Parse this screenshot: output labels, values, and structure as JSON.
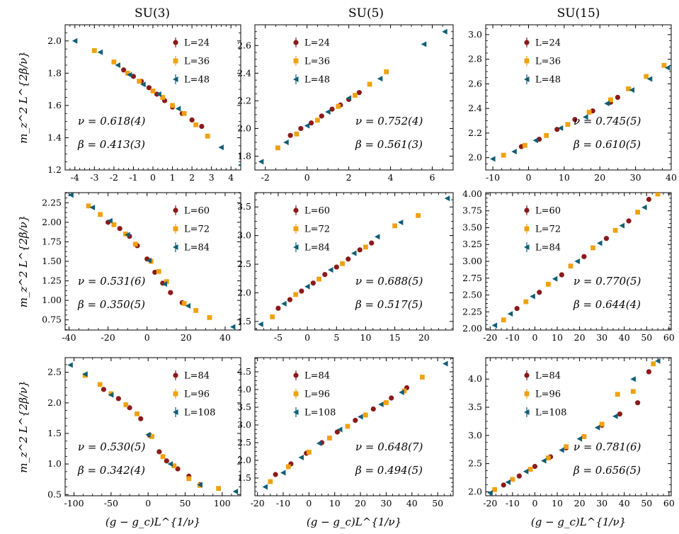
{
  "figure": {
    "column_titles": [
      "SU(3)",
      "SU(5)",
      "SU(15)"
    ],
    "xlabel": "(g − g_c)L^{1/ν}",
    "ylabel": "m_z^2 L^{2β/ν}",
    "colors": {
      "red": "#8b1a1a",
      "orange": "#f0a10f",
      "teal": "#0f5e75"
    }
  },
  "chart_data": [
    {
      "type": "scatter",
      "group": "SU(3)",
      "xlim": [
        -4.5,
        4.5
      ],
      "ylim": [
        1.2,
        2.1
      ],
      "xticks": [
        -4,
        -3,
        -2,
        -1,
        0,
        1,
        2,
        3,
        4
      ],
      "yticks": [
        1.2,
        1.4,
        1.6,
        1.8,
        2.0
      ],
      "ytick_labels": [
        "1.2",
        "1.4",
        "1.6",
        "1.8",
        "2.0"
      ],
      "annotations": [
        "ν = 0.618(4)",
        "β = 0.413(3)"
      ],
      "legend_position": "top-right",
      "series": [
        {
          "name": "L=24",
          "marker": "circle",
          "color": "#8b1a1a",
          "x": [
            -1.5,
            -1.0,
            -0.6,
            -0.2,
            0.2,
            0.6,
            1.0,
            1.5,
            2.0,
            2.5
          ],
          "y": [
            1.82,
            1.78,
            1.75,
            1.71,
            1.67,
            1.63,
            1.59,
            1.55,
            1.51,
            1.47
          ]
        },
        {
          "name": "L=36",
          "marker": "square",
          "color": "#f0a10f",
          "x": [
            -3.0,
            -2.0,
            -1.3,
            -0.7,
            0.0,
            0.5,
            1.0,
            1.6,
            2.2,
            2.8
          ],
          "y": [
            1.94,
            1.87,
            1.8,
            1.75,
            1.69,
            1.65,
            1.6,
            1.55,
            1.48,
            1.41
          ]
        },
        {
          "name": "L=48",
          "marker": "triangle",
          "color": "#0f5e75",
          "x": [
            -4.0,
            -2.7,
            -1.8,
            -1.2,
            -0.5,
            0.3,
            1.3,
            3.5,
            4.5
          ],
          "y": [
            2.0,
            1.93,
            1.85,
            1.79,
            1.73,
            1.67,
            1.58,
            1.34,
            1.23
          ]
        }
      ]
    },
    {
      "type": "scatter",
      "group": "SU(5)",
      "xlim": [
        -2.5,
        7.0
      ],
      "ylim": [
        1.7,
        2.75
      ],
      "xticks": [
        -2,
        0,
        2,
        4,
        6
      ],
      "yticks": [
        1.8,
        2.0,
        2.2,
        2.4,
        2.6
      ],
      "ytick_labels": [
        "1.8",
        "2.0",
        "2.2",
        "2.4",
        "2.6"
      ],
      "annotations": [
        "ν = 0.752(4)",
        "β = 0.561(3)"
      ],
      "legend_position": "top-left",
      "series": [
        {
          "name": "L=24",
          "marker": "circle",
          "color": "#8b1a1a",
          "x": [
            -0.8,
            -0.3,
            0.2,
            0.7,
            1.2,
            1.6,
            2.0,
            2.5
          ],
          "y": [
            1.95,
            2.0,
            2.04,
            2.09,
            2.14,
            2.17,
            2.21,
            2.26
          ]
        },
        {
          "name": "L=36",
          "marker": "square",
          "color": "#f0a10f",
          "x": [
            -1.4,
            -0.5,
            0.5,
            1.5,
            2.3,
            3.0,
            3.8
          ],
          "y": [
            1.86,
            1.96,
            2.06,
            2.16,
            2.24,
            2.32,
            2.41
          ]
        },
        {
          "name": "L=48",
          "marker": "triangle",
          "color": "#0f5e75",
          "x": [
            -2.2,
            -1.0,
            0.0,
            1.0,
            2.0,
            3.5,
            5.6,
            6.6
          ],
          "y": [
            1.76,
            1.9,
            2.02,
            2.12,
            2.22,
            2.36,
            2.61,
            2.7
          ]
        }
      ]
    },
    {
      "type": "scatter",
      "group": "SU(15)",
      "xlim": [
        -12,
        40
      ],
      "ylim": [
        1.9,
        3.08
      ],
      "xticks": [
        -10,
        0,
        10,
        20,
        30,
        40
      ],
      "yticks": [
        2.0,
        2.2,
        2.4,
        2.6,
        2.8,
        3.0
      ],
      "ytick_labels": [
        "2.0",
        "2.2",
        "2.4",
        "2.6",
        "2.8",
        "3.0"
      ],
      "annotations": [
        "ν = 0.745(5)",
        "β = 0.610(5)"
      ],
      "legend_position": "top-left",
      "series": [
        {
          "name": "L=24",
          "marker": "circle",
          "color": "#8b1a1a",
          "x": [
            -2,
            3,
            8,
            13,
            18,
            23,
            25
          ],
          "y": [
            2.09,
            2.15,
            2.23,
            2.31,
            2.38,
            2.45,
            2.49
          ]
        },
        {
          "name": "L=36",
          "marker": "square",
          "color": "#f0a10f",
          "x": [
            -7,
            -1,
            5,
            11,
            17,
            23,
            28,
            33,
            38
          ],
          "y": [
            2.02,
            2.1,
            2.18,
            2.27,
            2.37,
            2.47,
            2.56,
            2.66,
            2.75
          ]
        },
        {
          "name": "L=48",
          "marker": "triangle",
          "color": "#0f5e75",
          "x": [
            -10,
            -4,
            2,
            9,
            16,
            22,
            29,
            34,
            39
          ],
          "y": [
            1.99,
            2.05,
            2.14,
            2.24,
            2.33,
            2.44,
            2.55,
            2.64,
            2.73
          ]
        }
      ]
    },
    {
      "type": "scatter",
      "group": "SU(3)",
      "xlim": [
        -42,
        48
      ],
      "ylim": [
        0.62,
        2.38
      ],
      "xticks": [
        -40,
        -20,
        0,
        20,
        40
      ],
      "yticks": [
        0.75,
        1.0,
        1.25,
        1.5,
        1.75,
        2.0,
        2.25
      ],
      "ytick_labels": [
        "0.75",
        "1.00",
        "1.25",
        "1.50",
        "1.75",
        "2.00",
        "2.25"
      ],
      "annotations": [
        "ν = 0.531(6)",
        "β = 0.350(5)"
      ],
      "legend_position": "top-right",
      "series": [
        {
          "name": "L=60",
          "marker": "circle",
          "color": "#8b1a1a",
          "x": [
            -20,
            -14,
            -9,
            -5,
            0,
            4,
            8,
            12,
            18
          ],
          "y": [
            2.0,
            1.92,
            1.82,
            1.7,
            1.53,
            1.36,
            1.22,
            1.1,
            0.97
          ]
        },
        {
          "name": "L=72",
          "marker": "square",
          "color": "#f0a10f",
          "x": [
            -30,
            -24,
            -17,
            -11,
            -6,
            2,
            6,
            10,
            19,
            25,
            32
          ],
          "y": [
            2.21,
            2.1,
            1.97,
            1.85,
            1.72,
            1.5,
            1.37,
            1.24,
            0.96,
            0.87,
            0.78
          ]
        },
        {
          "name": "L=84",
          "marker": "triangle",
          "color": "#0f5e75",
          "x": [
            -39,
            -28,
            -19,
            -10,
            1,
            9,
            21,
            44
          ],
          "y": [
            2.35,
            2.19,
            2.02,
            1.84,
            1.51,
            1.21,
            0.93,
            0.66
          ]
        }
      ]
    },
    {
      "type": "scatter",
      "group": "SU(5)",
      "xlim": [
        -9,
        25
      ],
      "ylim": [
        1.35,
        3.75
      ],
      "xticks": [
        -5,
        0,
        5,
        10,
        15,
        20
      ],
      "yticks": [
        1.5,
        2.0,
        2.5,
        3.0,
        3.5
      ],
      "ytick_labels": [
        "1.5",
        "2.0",
        "2.5",
        "3.0",
        "3.5"
      ],
      "annotations": [
        "ν = 0.688(5)",
        "β = 0.517(5)"
      ],
      "legend_position": "top-left",
      "series": [
        {
          "name": "L=60",
          "marker": "circle",
          "color": "#8b1a1a",
          "x": [
            -5,
            -3,
            -1,
            1,
            3,
            5,
            7,
            9,
            11
          ],
          "y": [
            1.73,
            1.88,
            2.03,
            2.17,
            2.32,
            2.45,
            2.59,
            2.75,
            2.87
          ]
        },
        {
          "name": "L=72",
          "marker": "square",
          "color": "#f0a10f",
          "x": [
            -6,
            -2,
            2,
            6,
            10,
            15,
            19
          ],
          "y": [
            1.58,
            1.97,
            2.24,
            2.51,
            2.8,
            3.17,
            3.35
          ]
        },
        {
          "name": "L=84",
          "marker": "triangle",
          "color": "#0f5e75",
          "x": [
            -8,
            -4,
            0,
            4,
            8,
            12,
            16,
            24
          ],
          "y": [
            1.45,
            1.81,
            2.11,
            2.4,
            2.69,
            2.98,
            3.23,
            3.65
          ]
        }
      ]
    },
    {
      "type": "scatter",
      "group": "SU(15)",
      "xlim": [
        -22,
        61
      ],
      "ylim": [
        1.98,
        4.02
      ],
      "xticks": [
        -20,
        -10,
        0,
        10,
        20,
        30,
        40,
        50,
        60
      ],
      "yticks": [
        2.0,
        2.25,
        2.5,
        2.75,
        3.0,
        3.25,
        3.5,
        3.75,
        4.0
      ],
      "ytick_labels": [
        "2.00",
        "2.25",
        "2.50",
        "2.75",
        "3.00",
        "3.25",
        "3.50",
        "3.75",
        "4.00"
      ],
      "annotations": [
        "ν = 0.770(5)",
        "β = 0.644(4)"
      ],
      "legend_position": "top-left",
      "series": [
        {
          "name": "L=60",
          "marker": "circle",
          "color": "#8b1a1a",
          "x": [
            -8,
            2,
            12,
            22,
            32,
            42,
            51
          ],
          "y": [
            2.3,
            2.54,
            2.8,
            3.07,
            3.34,
            3.6,
            3.92
          ]
        },
        {
          "name": "L=72",
          "marker": "square",
          "color": "#f0a10f",
          "x": [
            -14,
            -4,
            6,
            16,
            26,
            36,
            46,
            55
          ],
          "y": [
            2.13,
            2.4,
            2.66,
            2.93,
            3.2,
            3.46,
            3.73,
            4.0
          ]
        },
        {
          "name": "L=84",
          "marker": "triangle",
          "color": "#0f5e75",
          "x": [
            -18,
            -11,
            -1,
            9,
            19,
            29,
            39,
            49
          ],
          "y": [
            2.05,
            2.22,
            2.48,
            2.74,
            3.0,
            3.27,
            3.53,
            3.8
          ]
        }
      ]
    },
    {
      "type": "scatter",
      "group": "SU(3)",
      "xlim": [
        -112,
        125
      ],
      "ylim": [
        0.48,
        2.74
      ],
      "xticks": [
        -100,
        -50,
        0,
        50,
        100
      ],
      "yticks": [
        0.5,
        1.0,
        1.5,
        2.0,
        2.5
      ],
      "ytick_labels": [
        "0.5",
        "1.0",
        "1.5",
        "2.0",
        "2.5"
      ],
      "annotations": [
        "ν = 0.530(5)",
        "β = 0.342(4)"
      ],
      "legend_position": "top-right",
      "series": [
        {
          "name": "L=84",
          "marker": "circle",
          "color": "#8b1a1a",
          "x": [
            -60,
            -40,
            -25,
            -10,
            2,
            15,
            25,
            40,
            55,
            70
          ],
          "y": [
            2.22,
            2.07,
            1.92,
            1.74,
            1.47,
            1.2,
            1.05,
            0.92,
            0.8,
            0.66
          ]
        },
        {
          "name": "L=96",
          "marker": "square",
          "color": "#f0a10f",
          "x": [
            -85,
            -65,
            -50,
            -30,
            -15,
            5,
            20,
            35,
            55,
            70,
            95
          ],
          "y": [
            2.45,
            2.3,
            2.15,
            1.97,
            1.82,
            1.45,
            1.12,
            0.97,
            0.76,
            0.65,
            0.6
          ]
        },
        {
          "name": "L=108",
          "marker": "triangle",
          "color": "#0f5e75",
          "x": [
            -105,
            -85,
            -50,
            0,
            30,
            70,
            118
          ],
          "y": [
            2.62,
            2.47,
            2.13,
            1.48,
            1.0,
            0.66,
            0.55
          ]
        }
      ]
    },
    {
      "type": "scatter",
      "group": "SU(5)",
      "xlim": [
        -21,
        56
      ],
      "ylim": [
        1.0,
        4.9
      ],
      "xticks": [
        -20,
        -10,
        0,
        10,
        20,
        30,
        40,
        50
      ],
      "yticks": [
        1.5,
        2.0,
        2.5,
        3.0,
        3.5,
        4.0,
        4.5
      ],
      "ytick_labels": [
        "1.5",
        "2.0",
        "2.5",
        "3.0",
        "3.5",
        "4.0",
        "4.5"
      ],
      "annotations": [
        "ν = 0.648(7)",
        "β = 0.494(5)"
      ],
      "legend_position": "top-left",
      "series": [
        {
          "name": "L=84",
          "marker": "circle",
          "color": "#8b1a1a",
          "x": [
            -13,
            -7,
            -1,
            5,
            11,
            18,
            25,
            32,
            38
          ],
          "y": [
            1.6,
            1.9,
            2.2,
            2.5,
            2.8,
            3.13,
            3.45,
            3.76,
            4.05
          ]
        },
        {
          "name": "L=96",
          "marker": "square",
          "color": "#f0a10f",
          "x": [
            -15,
            -8,
            0,
            8,
            15,
            22,
            30,
            37,
            44
          ],
          "y": [
            1.4,
            1.82,
            2.23,
            2.63,
            2.96,
            3.28,
            3.63,
            3.96,
            4.35
          ]
        },
        {
          "name": "L=108",
          "marker": "triangle",
          "color": "#0f5e75",
          "x": [
            -17,
            -10,
            -3,
            4,
            12,
            20,
            28,
            36,
            53
          ],
          "y": [
            1.25,
            1.65,
            2.08,
            2.48,
            2.87,
            3.23,
            3.58,
            3.92,
            4.73
          ]
        }
      ]
    },
    {
      "type": "scatter",
      "group": "SU(15)",
      "xlim": [
        -22,
        61
      ],
      "ylim": [
        1.93,
        4.38
      ],
      "xticks": [
        -20,
        -10,
        0,
        10,
        20,
        30,
        40,
        50,
        60
      ],
      "yticks": [
        2.0,
        2.5,
        3.0,
        3.5,
        4.0
      ],
      "ytick_labels": [
        "2.0",
        "2.5",
        "3.0",
        "3.5",
        "4.0"
      ],
      "annotations": [
        "ν = 0.781(6)",
        "β = 0.656(5)"
      ],
      "legend_position": "top-left",
      "series": [
        {
          "name": "L=84",
          "marker": "circle",
          "color": "#8b1a1a",
          "x": [
            -14,
            -7,
            0,
            7,
            14,
            22,
            30,
            38,
            46,
            51
          ],
          "y": [
            2.12,
            2.28,
            2.45,
            2.62,
            2.78,
            2.98,
            3.18,
            3.38,
            3.58,
            4.13
          ]
        },
        {
          "name": "L=96",
          "marker": "square",
          "color": "#f0a10f",
          "x": [
            -18,
            -10,
            -2,
            6,
            14,
            22,
            30,
            37,
            44,
            53
          ],
          "y": [
            2.04,
            2.22,
            2.4,
            2.6,
            2.8,
            2.98,
            3.2,
            3.73,
            3.78,
            4.27
          ]
        },
        {
          "name": "L=108",
          "marker": "triangle",
          "color": "#0f5e75",
          "x": [
            -20,
            -12,
            -4,
            4,
            12,
            20,
            28,
            36,
            44,
            55
          ],
          "y": [
            1.98,
            2.17,
            2.36,
            2.55,
            2.74,
            2.94,
            3.14,
            3.34,
            4.0,
            4.32
          ]
        }
      ]
    }
  ]
}
